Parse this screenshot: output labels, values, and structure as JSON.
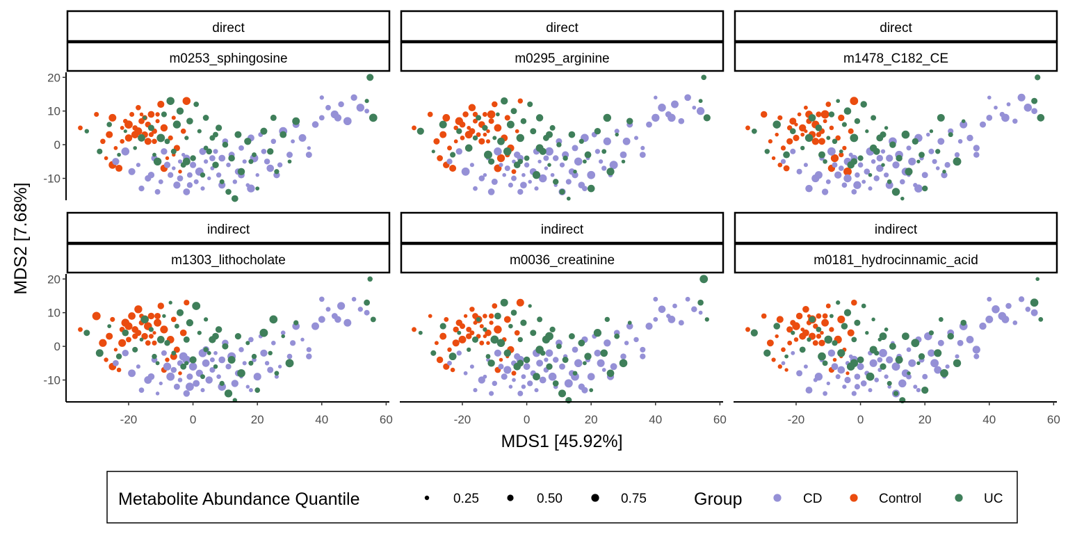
{
  "chart_data": {
    "type": "scatter",
    "xlabel": "MDS1 [45.92%]",
    "ylabel": "MDS2 [7.68%]",
    "xlim": [
      -39,
      61
    ],
    "ylim": [
      -16.5,
      21.5
    ],
    "x_ticks": [
      -20,
      0,
      20,
      40,
      60
    ],
    "y_ticks": [
      -10,
      0,
      10,
      20
    ],
    "x_tick_labels": [
      "-20",
      "0",
      "20",
      "40",
      "60"
    ],
    "y_tick_labels": [
      "-10",
      "0",
      "10",
      "20"
    ],
    "grid": false,
    "legend_position": "bottom",
    "legends": {
      "size": {
        "title": "Metabolite Abundance Quantile",
        "entries": [
          {
            "label": "0.25",
            "value": 0.25
          },
          {
            "label": "0.50",
            "value": 0.5
          },
          {
            "label": "0.75",
            "value": 0.75
          }
        ]
      },
      "color": {
        "title": "Group",
        "entries": [
          {
            "label": "CD",
            "color": "#9590d6"
          },
          {
            "label": "Control",
            "color": "#ea4c0f"
          },
          {
            "label": "UC",
            "color": "#3f7f5a"
          }
        ]
      }
    },
    "panels": [
      {
        "strip_top": "direct",
        "strip_bottom": "m0253_sphingosine",
        "seed": 11
      },
      {
        "strip_top": "direct",
        "strip_bottom": "m0295_arginine",
        "seed": 23
      },
      {
        "strip_top": "direct",
        "strip_bottom": "m1478_C182_CE",
        "seed": 37
      },
      {
        "strip_top": "indirect",
        "strip_bottom": "m1303_lithocholate",
        "seed": 41
      },
      {
        "strip_top": "indirect",
        "strip_bottom": "m0036_creatinine",
        "seed": 53
      },
      {
        "strip_top": "indirect",
        "strip_bottom": "m0181_hydrocinnamic_acid",
        "seed": 67
      }
    ],
    "series": [
      {
        "name": "Control",
        "color": "#ea4c0f",
        "points": [
          [
            -35,
            5
          ],
          [
            -30,
            9
          ],
          [
            -28,
            1
          ],
          [
            -27,
            -4
          ],
          [
            -26,
            3
          ],
          [
            -25,
            8
          ],
          [
            -24,
            -1
          ],
          [
            -23,
            -7
          ],
          [
            -22,
            5
          ],
          [
            -21,
            7
          ],
          [
            -20,
            2
          ],
          [
            -19,
            9
          ],
          [
            -18,
            5
          ],
          [
            -17,
            11
          ],
          [
            -16,
            7
          ],
          [
            -15,
            3
          ],
          [
            -15,
            8
          ],
          [
            -14,
            6
          ],
          [
            -13,
            9
          ],
          [
            -12,
            4
          ],
          [
            -11,
            7
          ],
          [
            -10,
            12
          ],
          [
            -9,
            5
          ],
          [
            -8,
            -4
          ],
          [
            -7,
            2
          ],
          [
            -6,
            8
          ],
          [
            -5,
            -1
          ],
          [
            -4,
            -8
          ],
          [
            -3,
            4
          ],
          [
            -2,
            13
          ],
          [
            -18,
            3
          ],
          [
            -14,
            1
          ],
          [
            -20,
            6
          ],
          [
            -16,
            9
          ],
          [
            -12,
            1
          ],
          [
            -9,
            -7
          ],
          [
            -6,
            -3
          ],
          [
            -22,
            1
          ],
          [
            -25,
            -6
          ],
          [
            -11,
            9
          ],
          [
            -13,
            3
          ],
          [
            -17,
            4
          ]
        ]
      },
      {
        "name": "CD",
        "color": "#9590d6",
        "points": [
          [
            -24,
            -5
          ],
          [
            -21,
            -2
          ],
          [
            -19,
            -8
          ],
          [
            -17,
            -6
          ],
          [
            -16,
            -13
          ],
          [
            -14,
            -10
          ],
          [
            -12,
            -4
          ],
          [
            -11,
            -14
          ],
          [
            -10,
            -11
          ],
          [
            -9,
            -2
          ],
          [
            -7,
            -9
          ],
          [
            -6,
            -7
          ],
          [
            -5,
            -12
          ],
          [
            -4,
            -5
          ],
          [
            -3,
            -3
          ],
          [
            -2,
            -14
          ],
          [
            -1,
            -9
          ],
          [
            0,
            -6
          ],
          [
            1,
            -11
          ],
          [
            2,
            -8
          ],
          [
            3,
            -13
          ],
          [
            4,
            -5
          ],
          [
            5,
            -10
          ],
          [
            6,
            -4
          ],
          [
            7,
            -2
          ],
          [
            8,
            -9
          ],
          [
            9,
            -12
          ],
          [
            10,
            1
          ],
          [
            11,
            -6
          ],
          [
            12,
            -3
          ],
          [
            13,
            -11
          ],
          [
            14,
            -8
          ],
          [
            15,
            -1
          ],
          [
            16,
            -5
          ],
          [
            17,
            -12
          ],
          [
            18,
            2
          ],
          [
            19,
            -4
          ],
          [
            20,
            -9
          ],
          [
            21,
            3
          ],
          [
            22,
            -2
          ],
          [
            24,
            -7
          ],
          [
            25,
            1
          ],
          [
            27,
            -6
          ],
          [
            28,
            4
          ],
          [
            30,
            -3
          ],
          [
            32,
            6
          ],
          [
            34,
            2
          ],
          [
            36,
            -1
          ],
          [
            38,
            6
          ],
          [
            40,
            8
          ],
          [
            40,
            14
          ],
          [
            42,
            11
          ],
          [
            44,
            9
          ],
          [
            46,
            12
          ],
          [
            48,
            7
          ],
          [
            50,
            14
          ],
          [
            52,
            11
          ],
          [
            54,
            10
          ],
          [
            -8,
            -6
          ],
          [
            -1,
            -12
          ],
          [
            6,
            -7
          ],
          [
            9,
            -4
          ],
          [
            11,
            -14
          ],
          [
            4,
            -1
          ],
          [
            -4,
            -10
          ],
          [
            15,
            -9
          ],
          [
            23,
            -5
          ],
          [
            26,
            -9
          ],
          [
            18,
            -13
          ],
          [
            -13,
            -9
          ],
          [
            36,
            -3
          ],
          [
            31,
            1
          ],
          [
            45,
            8
          ],
          [
            3,
            -2
          ],
          [
            -2,
            -4
          ]
        ]
      },
      {
        "name": "UC",
        "color": "#3f7f5a",
        "points": [
          [
            -33,
            4
          ],
          [
            -29,
            -2
          ],
          [
            -26,
            6
          ],
          [
            -23,
            -3
          ],
          [
            -21,
            4
          ],
          [
            -18,
            -1
          ],
          [
            -15,
            8
          ],
          [
            -13,
            5
          ],
          [
            -11,
            -5
          ],
          [
            -9,
            9
          ],
          [
            -8,
            1
          ],
          [
            -7,
            13
          ],
          [
            -6,
            -2
          ],
          [
            -5,
            6
          ],
          [
            -4,
            10
          ],
          [
            -3,
            -6
          ],
          [
            -2,
            2
          ],
          [
            -1,
            7
          ],
          [
            0,
            -4
          ],
          [
            1,
            12
          ],
          [
            2,
            4
          ],
          [
            3,
            -9
          ],
          [
            4,
            8
          ],
          [
            5,
            -2
          ],
          [
            6,
            2
          ],
          [
            7,
            -6
          ],
          [
            8,
            5
          ],
          [
            9,
            -11
          ],
          [
            10,
            0
          ],
          [
            11,
            -14
          ],
          [
            12,
            -4
          ],
          [
            13,
            -16
          ],
          [
            14,
            3
          ],
          [
            15,
            -8
          ],
          [
            17,
            1
          ],
          [
            19,
            -3
          ],
          [
            20,
            -13
          ],
          [
            22,
            4
          ],
          [
            24,
            -2
          ],
          [
            25,
            8
          ],
          [
            26,
            -8
          ],
          [
            28,
            3
          ],
          [
            30,
            -5
          ],
          [
            32,
            7
          ],
          [
            54,
            13
          ],
          [
            55,
            20
          ],
          [
            56,
            8
          ],
          [
            -16,
            2
          ],
          [
            -12,
            -3
          ],
          [
            -10,
            2
          ],
          [
            -2,
            -5
          ],
          [
            4,
            -1
          ],
          [
            7,
            3
          ],
          [
            18,
            -5
          ]
        ]
      }
    ]
  }
}
